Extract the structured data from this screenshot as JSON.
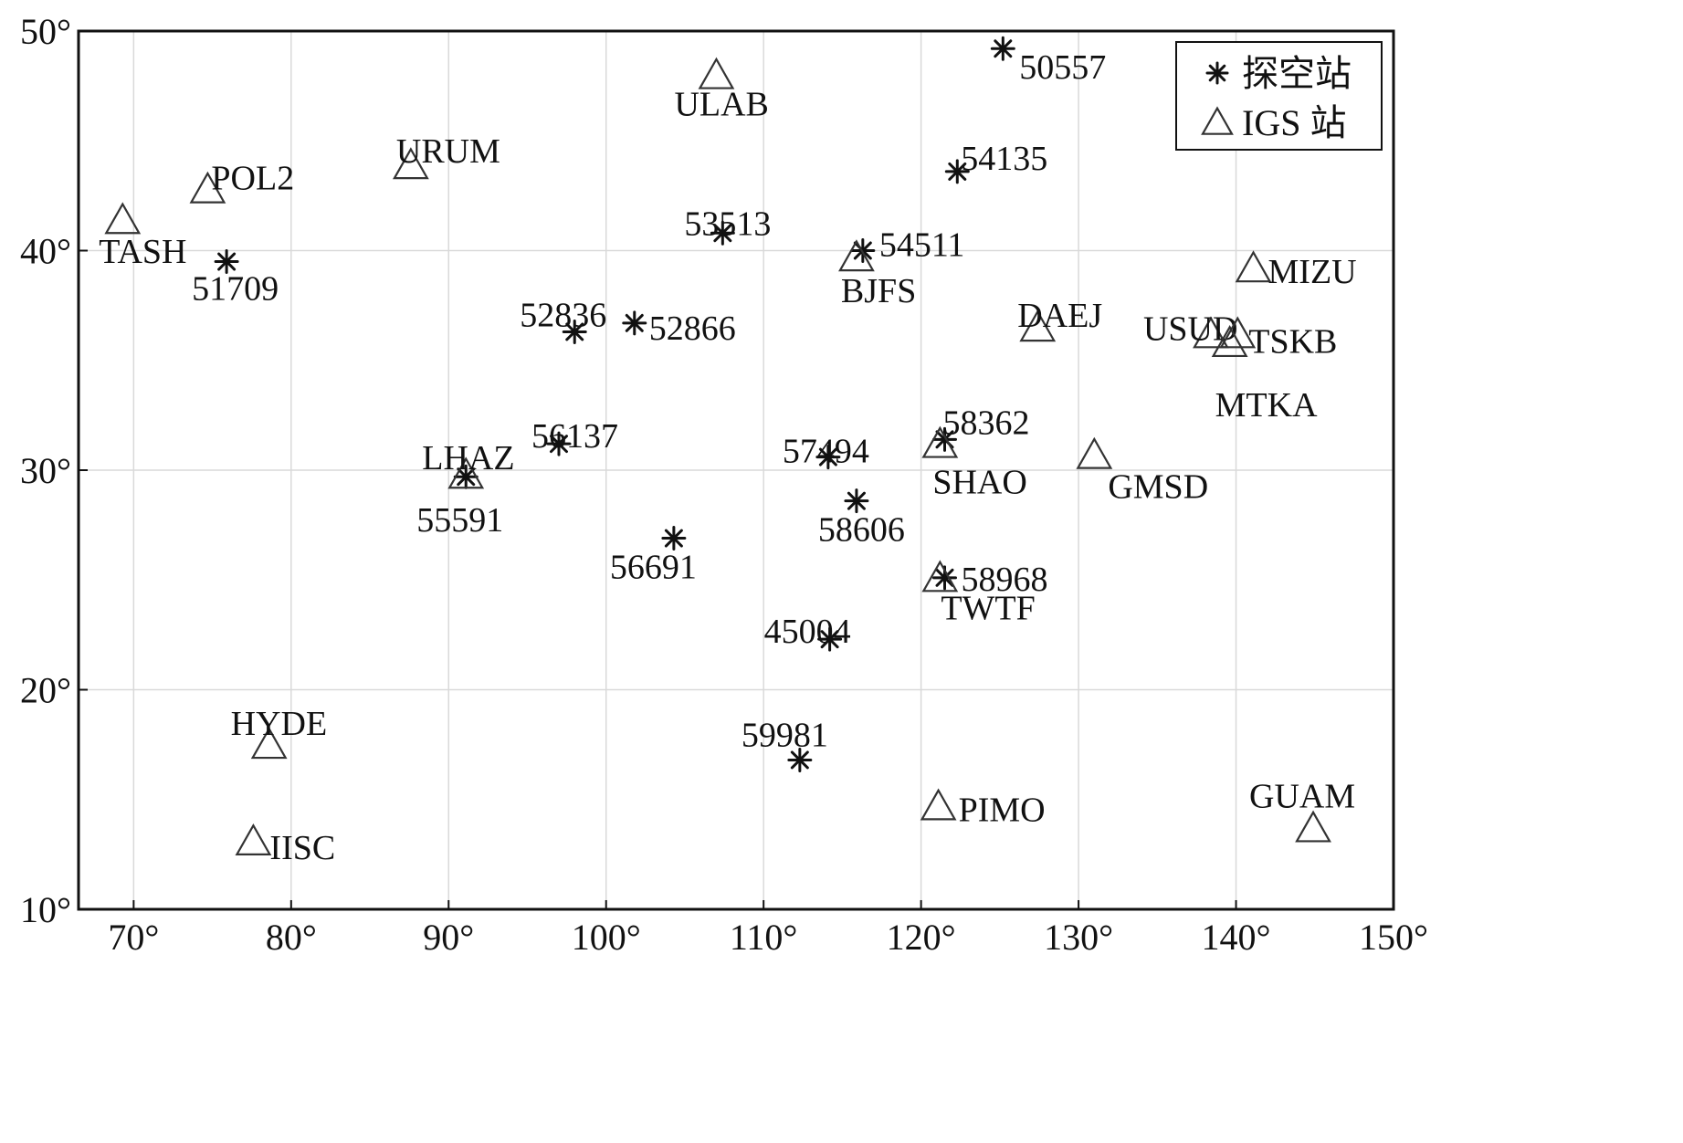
{
  "chart_data": {
    "type": "scatter",
    "title": "",
    "xlabel": "",
    "ylabel": "",
    "xlim": [
      66.5,
      150
    ],
    "ylim": [
      10,
      50
    ],
    "x_ticks": [
      70,
      80,
      90,
      100,
      110,
      120,
      130,
      140,
      150
    ],
    "y_ticks": [
      10,
      20,
      30,
      40,
      50
    ],
    "x_tick_labels": [
      "70°",
      "80°",
      "90°",
      "100°",
      "110°",
      "120°",
      "130°",
      "140°",
      "150°"
    ],
    "y_tick_labels": [
      "10°",
      "20°",
      "30°",
      "40°",
      "50°"
    ],
    "grid": true,
    "legend": {
      "placement": "top-right",
      "entries": [
        {
          "marker": "asterisk",
          "label": "探空站"
        },
        {
          "marker": "triangle",
          "label": "IGS 站"
        }
      ]
    },
    "series": [
      {
        "name": "探空站",
        "marker": "asterisk",
        "points": [
          {
            "label": "50557",
            "x": 125.2,
            "y": 49.2
          },
          {
            "label": "54135",
            "x": 122.3,
            "y": 43.6
          },
          {
            "label": "53513",
            "x": 107.4,
            "y": 40.8
          },
          {
            "label": "54511",
            "x": 116.3,
            "y": 40.0
          },
          {
            "label": "51709",
            "x": 75.9,
            "y": 39.5
          },
          {
            "label": "52836",
            "x": 98.0,
            "y": 36.3
          },
          {
            "label": "52866",
            "x": 101.8,
            "y": 36.7
          },
          {
            "label": "56137",
            "x": 97.0,
            "y": 31.2
          },
          {
            "label": "55591",
            "x": 91.1,
            "y": 29.7
          },
          {
            "label": "57494",
            "x": 114.1,
            "y": 30.6
          },
          {
            "label": "58362",
            "x": 121.5,
            "y": 31.4
          },
          {
            "label": "58606",
            "x": 115.9,
            "y": 28.6
          },
          {
            "label": "56691",
            "x": 104.3,
            "y": 26.9
          },
          {
            "label": "58968",
            "x": 121.5,
            "y": 25.1
          },
          {
            "label": "45004",
            "x": 114.2,
            "y": 22.3
          },
          {
            "label": "59981",
            "x": 112.3,
            "y": 16.8
          }
        ]
      },
      {
        "name": "IGS 站",
        "marker": "triangle",
        "points": [
          {
            "label": "ULAB",
            "x": 107.0,
            "y": 47.9
          },
          {
            "label": "URUM",
            "x": 87.6,
            "y": 43.8
          },
          {
            "label": "POL2",
            "x": 74.7,
            "y": 42.7
          },
          {
            "label": "TASH",
            "x": 69.3,
            "y": 41.3
          },
          {
            "label": "BJFS",
            "x": 115.9,
            "y": 39.6
          },
          {
            "label": "MIZU",
            "x": 141.1,
            "y": 39.1
          },
          {
            "label": "DAEJ",
            "x": 127.4,
            "y": 36.4
          },
          {
            "label": "USUD",
            "x": 138.4,
            "y": 36.1
          },
          {
            "label": "TSKB",
            "x": 140.1,
            "y": 36.1
          },
          {
            "label": "MTKA",
            "x": 139.6,
            "y": 35.7
          },
          {
            "label": "LHAZ",
            "x": 91.1,
            "y": 29.7
          },
          {
            "label": "SHAO",
            "x": 121.2,
            "y": 31.1
          },
          {
            "label": "GMSD",
            "x": 131.0,
            "y": 30.6
          },
          {
            "label": "TWTF",
            "x": 121.2,
            "y": 25.0
          },
          {
            "label": "HYDE",
            "x": 78.6,
            "y": 17.4
          },
          {
            "label": "IISC",
            "x": 77.6,
            "y": 13.0
          },
          {
            "label": "PIMO",
            "x": 121.1,
            "y": 14.6
          },
          {
            "label": "GUAM",
            "x": 144.9,
            "y": 13.6
          }
        ]
      }
    ]
  }
}
